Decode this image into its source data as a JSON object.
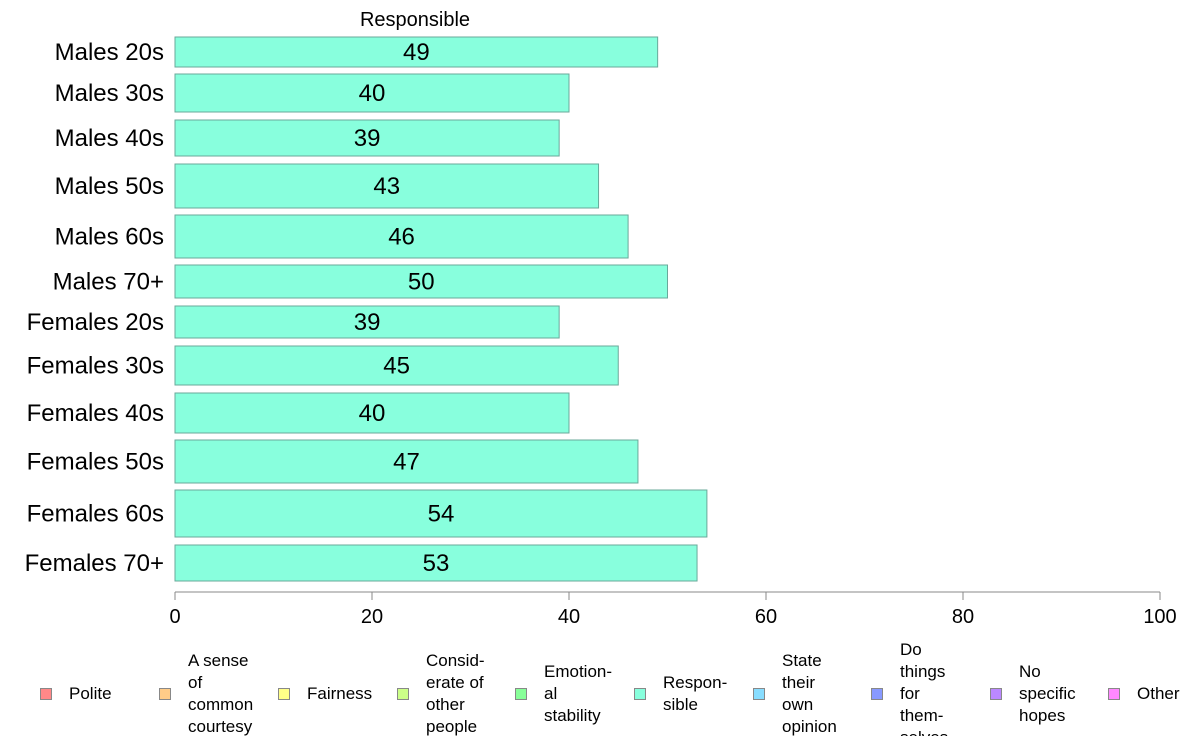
{
  "chart_data": {
    "type": "bar",
    "orientation": "horizontal",
    "title": "Responsible",
    "categories": [
      "Males 20s",
      "Males 30s",
      "Males 40s",
      "Males 50s",
      "Males 60s",
      "Males 70+",
      "Females 20s",
      "Females 30s",
      "Females 40s",
      "Females 50s",
      "Females 60s",
      "Females 70+"
    ],
    "series": [
      {
        "name": "Responsible",
        "values": [
          49,
          40,
          39,
          43,
          46,
          50,
          39,
          45,
          40,
          47,
          54,
          53
        ],
        "color": "#88ffdd"
      }
    ],
    "xlim": [
      0,
      100
    ],
    "xticks": [
      0,
      20,
      40,
      60,
      80,
      100
    ],
    "grid": false,
    "legend_position": "bottom",
    "legend": [
      {
        "label": "Polite",
        "color": "#ff8888"
      },
      {
        "label": "A sense\nof\ncommon\ncourtesy",
        "color": "#ffcc88"
      },
      {
        "label": "Fairness",
        "color": "#ffff88"
      },
      {
        "label": "Consid-\nerate of\nother\npeople",
        "color": "#ccff88"
      },
      {
        "label": "Emotion-\nal\nstability",
        "color": "#88ff99"
      },
      {
        "label": "Respon-\nsible",
        "color": "#88ffdd"
      },
      {
        "label": "State\ntheir\nown\nopinion",
        "color": "#88ddff"
      },
      {
        "label": "Do\nthings\nfor\nthem-\nselves",
        "color": "#8899ff"
      },
      {
        "label": "No\nspecific\nhopes",
        "color": "#bb88ff"
      },
      {
        "label": "Other",
        "color": "#ff88ff"
      }
    ]
  }
}
